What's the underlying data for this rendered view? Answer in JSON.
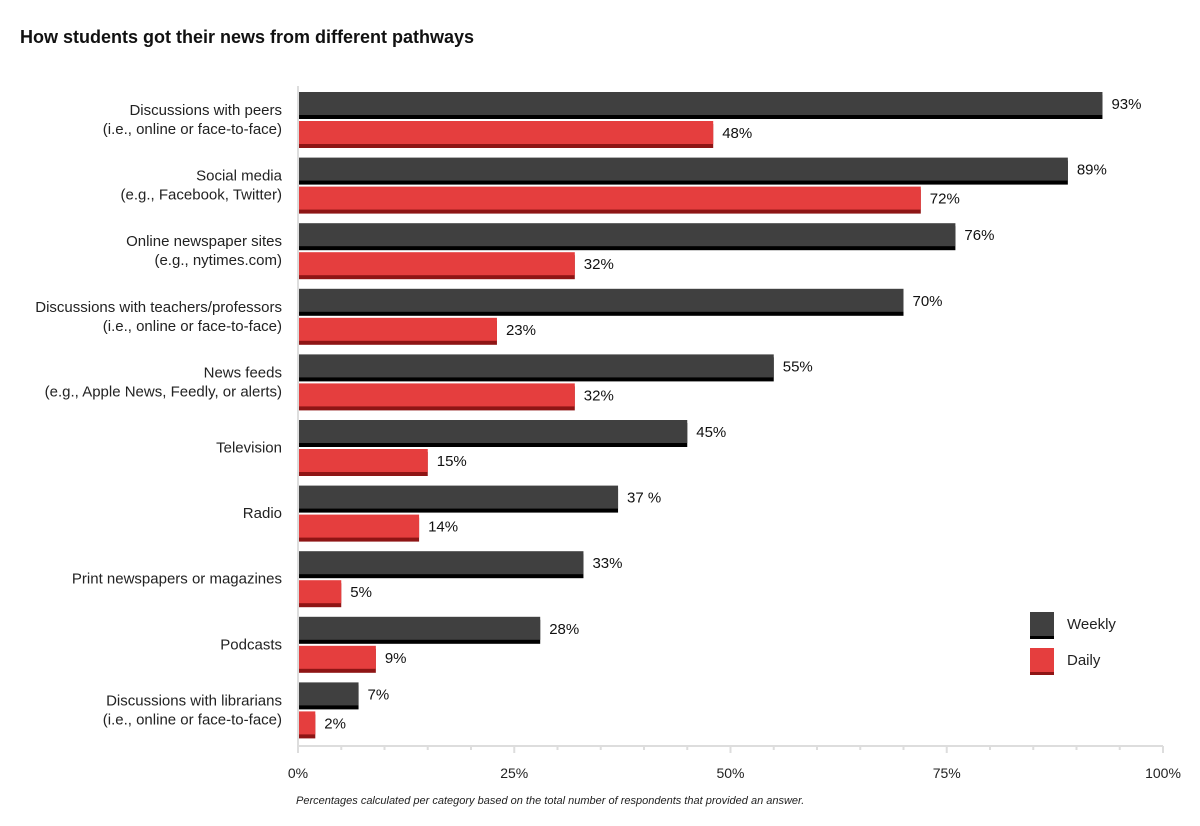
{
  "title": "How students got their news from different pathways",
  "footnote": "Percentages calculated per category based on the total number of respondents that provided an answer.",
  "colors": {
    "weekly": "#404040",
    "weekly_shadow": "#000000",
    "daily": "#e53e3e",
    "daily_shadow": "#8e1515",
    "axis": "#dddddd"
  },
  "chart_data": {
    "type": "bar",
    "orientation": "horizontal",
    "title": "How students got their news from different pathways",
    "categories": [
      [
        "Discussions with peers",
        "(i.e., online or face-to-face)"
      ],
      [
        "Social media",
        "(e.g., Facebook, Twitter)"
      ],
      [
        "Online newspaper sites",
        "(e.g., nytimes.com)"
      ],
      [
        "Discussions with teachers/professors",
        "(i.e., online or face-to-face)"
      ],
      [
        "News feeds",
        "(e.g., Apple News, Feedly, or alerts)"
      ],
      [
        "Television"
      ],
      [
        "Radio"
      ],
      [
        "Print newspapers or magazines"
      ],
      [
        "Podcasts"
      ],
      [
        "Discussions with librarians",
        "(i.e., online or face-to-face)"
      ]
    ],
    "series": [
      {
        "name": "Weekly",
        "values": [
          93,
          89,
          76,
          70,
          55,
          45,
          37,
          33,
          28,
          7
        ],
        "labels": [
          "93%",
          "89%",
          "76%",
          "70%",
          "55%",
          "45%",
          "37 %",
          "33%",
          "28%",
          "7%"
        ]
      },
      {
        "name": "Daily",
        "values": [
          48,
          72,
          32,
          23,
          32,
          15,
          14,
          5,
          9,
          2
        ],
        "labels": [
          "48%",
          "72%",
          "32%",
          "23%",
          "32%",
          "15%",
          "14%",
          "5%",
          "9%",
          "2%"
        ]
      }
    ],
    "xlim": [
      0,
      100
    ],
    "xticks": [
      0,
      25,
      50,
      75,
      100
    ],
    "xtick_labels": [
      "0%",
      "25%",
      "50%",
      "75%",
      "100%"
    ],
    "grid": false,
    "legend_position": "bottom-right"
  }
}
